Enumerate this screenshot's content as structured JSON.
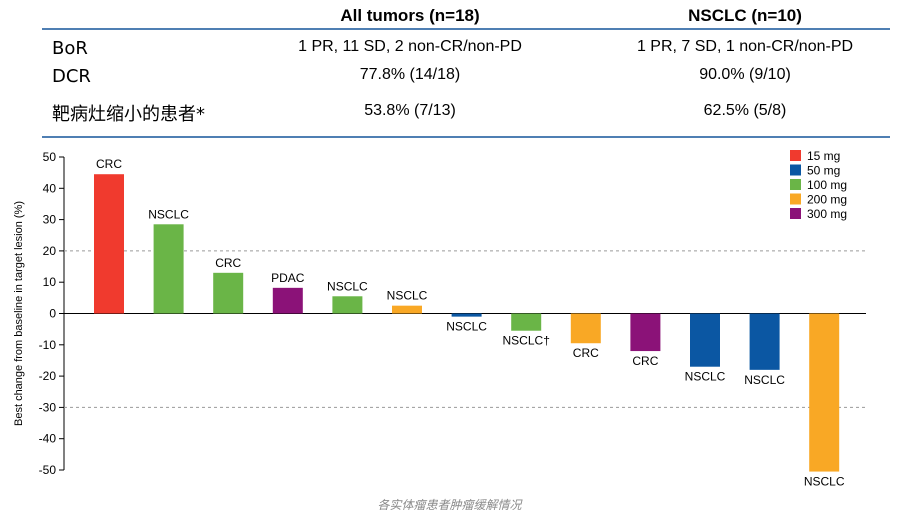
{
  "table": {
    "columns": [
      "All tumors (n=18)",
      "NSCLC (n=10)"
    ],
    "rows": [
      {
        "label": "BoR",
        "values": [
          "1 PR, 11 SD, 2 non-CR/non-PD",
          "1 PR, 7 SD, 1 non-CR/non-PD"
        ]
      },
      {
        "label": "DCR",
        "values": [
          "77.8% (14/18)",
          "90.0% (9/10)"
        ]
      },
      {
        "label": "靶病灶缩小的患者*",
        "values": [
          "53.8% (7/13)",
          "62.5% (5/8)"
        ]
      }
    ]
  },
  "chart_data": {
    "type": "bar",
    "title": "",
    "xlabel": "",
    "ylabel": "Best change from baseline in target lesion (%)",
    "ylim": [
      -50,
      50
    ],
    "yticks": [
      50,
      40,
      30,
      20,
      10,
      0,
      -10,
      -20,
      -30,
      -40,
      -50
    ],
    "reference_lines": [
      20,
      -30
    ],
    "legend": {
      "position": "top-right",
      "entries": [
        {
          "label": "15 mg",
          "color": "#f03a2e"
        },
        {
          "label": "50 mg",
          "color": "#0b57a3"
        },
        {
          "label": "100 mg",
          "color": "#6ab547"
        },
        {
          "label": "200 mg",
          "color": "#f9a825"
        },
        {
          "label": "300 mg",
          "color": "#8b1278"
        }
      ]
    },
    "bars": [
      {
        "label": "CRC",
        "value": 44.5,
        "dose": "15 mg"
      },
      {
        "label": "NSCLC",
        "value": 28.5,
        "dose": "100 mg"
      },
      {
        "label": "CRC",
        "value": 13.0,
        "dose": "100 mg"
      },
      {
        "label": "PDAC",
        "value": 8.2,
        "dose": "300 mg"
      },
      {
        "label": "NSCLC",
        "value": 5.5,
        "dose": "100 mg"
      },
      {
        "label": "NSCLC",
        "value": 2.5,
        "dose": "200 mg"
      },
      {
        "label": "NSCLC",
        "value": -1.0,
        "dose": "50 mg"
      },
      {
        "label": "NSCLC†",
        "value": -5.5,
        "dose": "100 mg"
      },
      {
        "label": "CRC",
        "value": -9.5,
        "dose": "200 mg"
      },
      {
        "label": "CRC",
        "value": -12.0,
        "dose": "300 mg"
      },
      {
        "label": "NSCLC",
        "value": -17.0,
        "dose": "50 mg"
      },
      {
        "label": "NSCLC",
        "value": -18.0,
        "dose": "50 mg"
      },
      {
        "label": "NSCLC",
        "value": -50.5,
        "dose": "200 mg"
      }
    ]
  },
  "caption": "各实体瘤患者肿瘤缓解情况"
}
